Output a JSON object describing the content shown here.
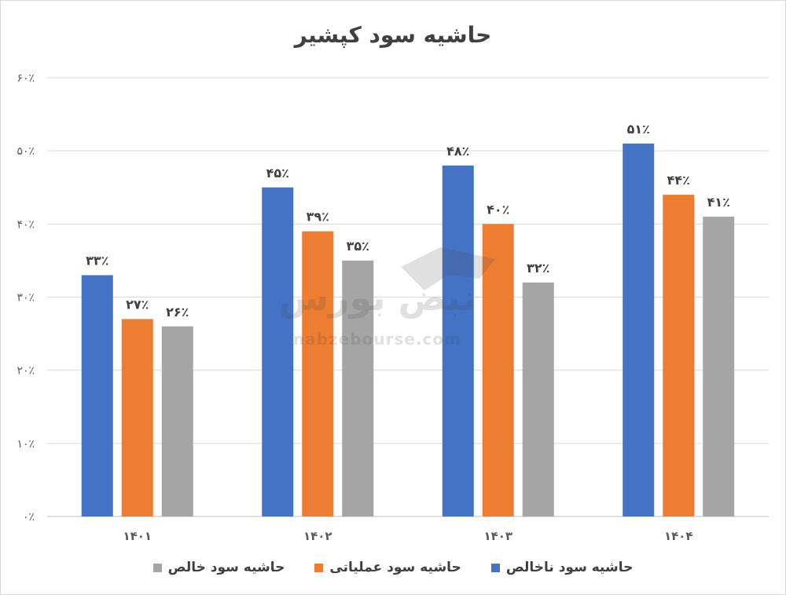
{
  "chart_data": {
    "type": "bar",
    "title": "حاشیه سود کپشیر",
    "categories": [
      "۱۴۰۱",
      "۱۴۰۲",
      "۱۴۰۳",
      "۱۴۰۴"
    ],
    "series": [
      {
        "name": "حاشیه سود ناخالص",
        "color": "#4472c4",
        "values": [
          33,
          45,
          48,
          51
        ],
        "labels": [
          "۳۳٪",
          "۴۵٪",
          "۴۸٪",
          "۵۱٪"
        ]
      },
      {
        "name": "حاشیه سود عملیاتی",
        "color": "#ed7d31",
        "values": [
          27,
          39,
          40,
          44
        ],
        "labels": [
          "۲۷٪",
          "۳۹٪",
          "۴۰٪",
          "۴۴٪"
        ]
      },
      {
        "name": "حاشیه سود خالص",
        "color": "#a5a5a5",
        "values": [
          26,
          35,
          32,
          41
        ],
        "labels": [
          "۲۶٪",
          "۳۵٪",
          "۳۲٪",
          "۴۱٪"
        ]
      }
    ],
    "ylim": [
      0,
      60
    ],
    "yticks": [
      {
        "value": 0,
        "label": "۰٪"
      },
      {
        "value": 10,
        "label": "۱۰٪"
      },
      {
        "value": 20,
        "label": "۲۰٪"
      },
      {
        "value": 30,
        "label": "۳۰٪"
      },
      {
        "value": 40,
        "label": "۴۰٪"
      },
      {
        "value": 50,
        "label": "۵۰٪"
      },
      {
        "value": 60,
        "label": "۶۰٪"
      }
    ],
    "grid": true,
    "legend_position": "bottom"
  },
  "watermark": {
    "logo_text": "نبض بورس",
    "url_text": "nabzebourse.com"
  }
}
